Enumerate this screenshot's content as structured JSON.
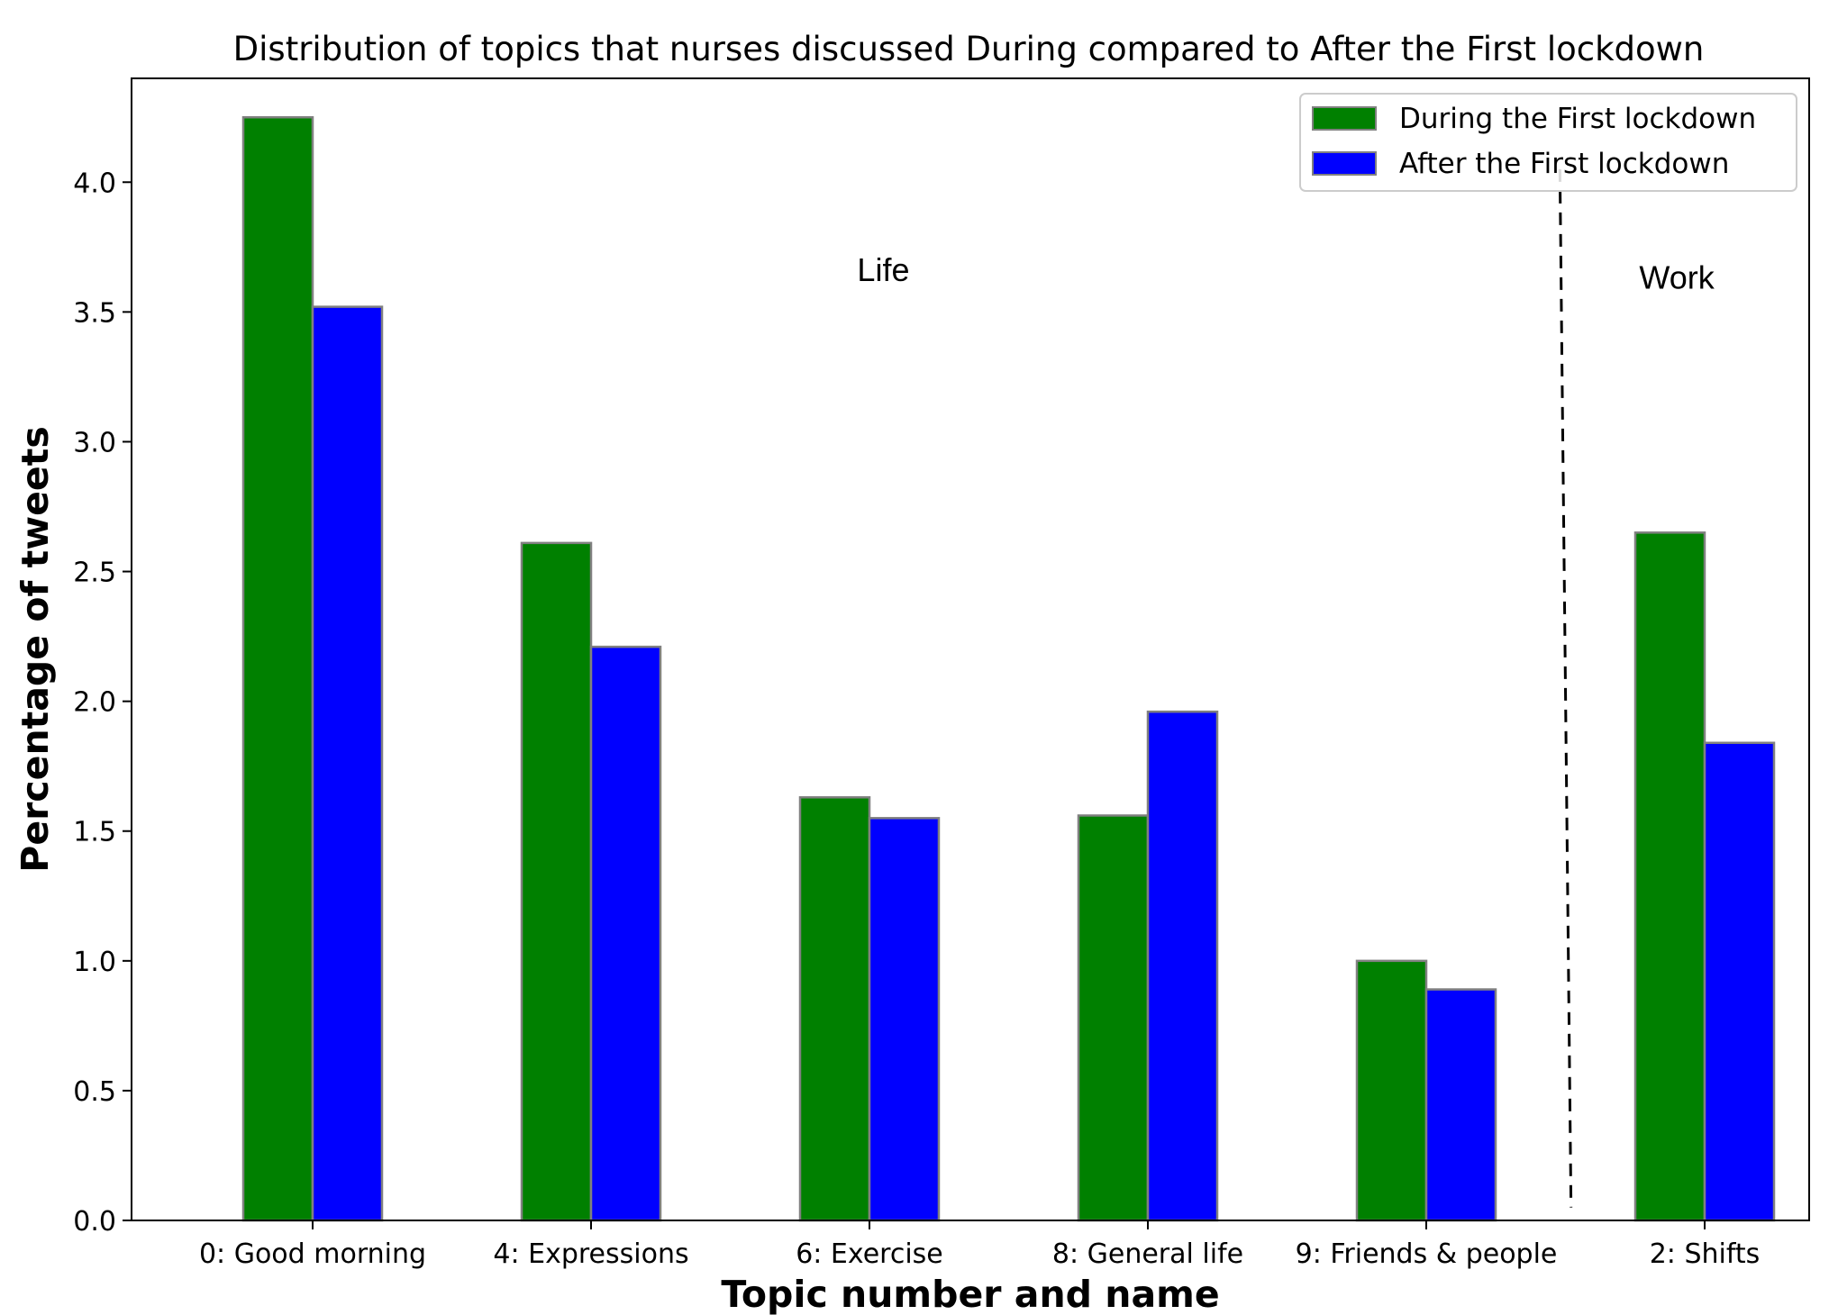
{
  "chart_data": {
    "type": "bar",
    "title": "Distribution of topics that nurses discussed During compared to After the First lockdown",
    "xlabel": "Topic number and name",
    "ylabel": "Percentage of tweets",
    "categories": [
      "0: Good morning",
      "4: Expressions",
      "6: Exercise",
      "8: General life",
      "9: Friends & people",
      "2: Shifts"
    ],
    "series": [
      {
        "name": "During the First lockdown",
        "color": "#008000",
        "values": [
          4.25,
          2.61,
          1.63,
          1.56,
          1.0,
          2.65
        ]
      },
      {
        "name": "After the First lockdown",
        "color": "#0000ff",
        "values": [
          3.52,
          2.21,
          1.55,
          1.96,
          0.89,
          1.84
        ]
      }
    ],
    "ylim": [
      0,
      4.4
    ],
    "yticks": [
      "0.0",
      "0.5",
      "1.0",
      "1.5",
      "2.0",
      "2.5",
      "3.0",
      "3.5",
      "4.0"
    ],
    "grid": false,
    "legend_position": "top-right",
    "annotations": [
      {
        "text": "Life",
        "x": 2.05,
        "y": 3.62
      },
      {
        "text": "Work",
        "x": 4.9,
        "y": 3.59
      }
    ],
    "divider": {
      "style": "dashed",
      "x_start": 4.48,
      "x_end": 4.52,
      "y_start": 0.05,
      "y_end": 4.05
    },
    "bar_edge_color": "#808080"
  }
}
